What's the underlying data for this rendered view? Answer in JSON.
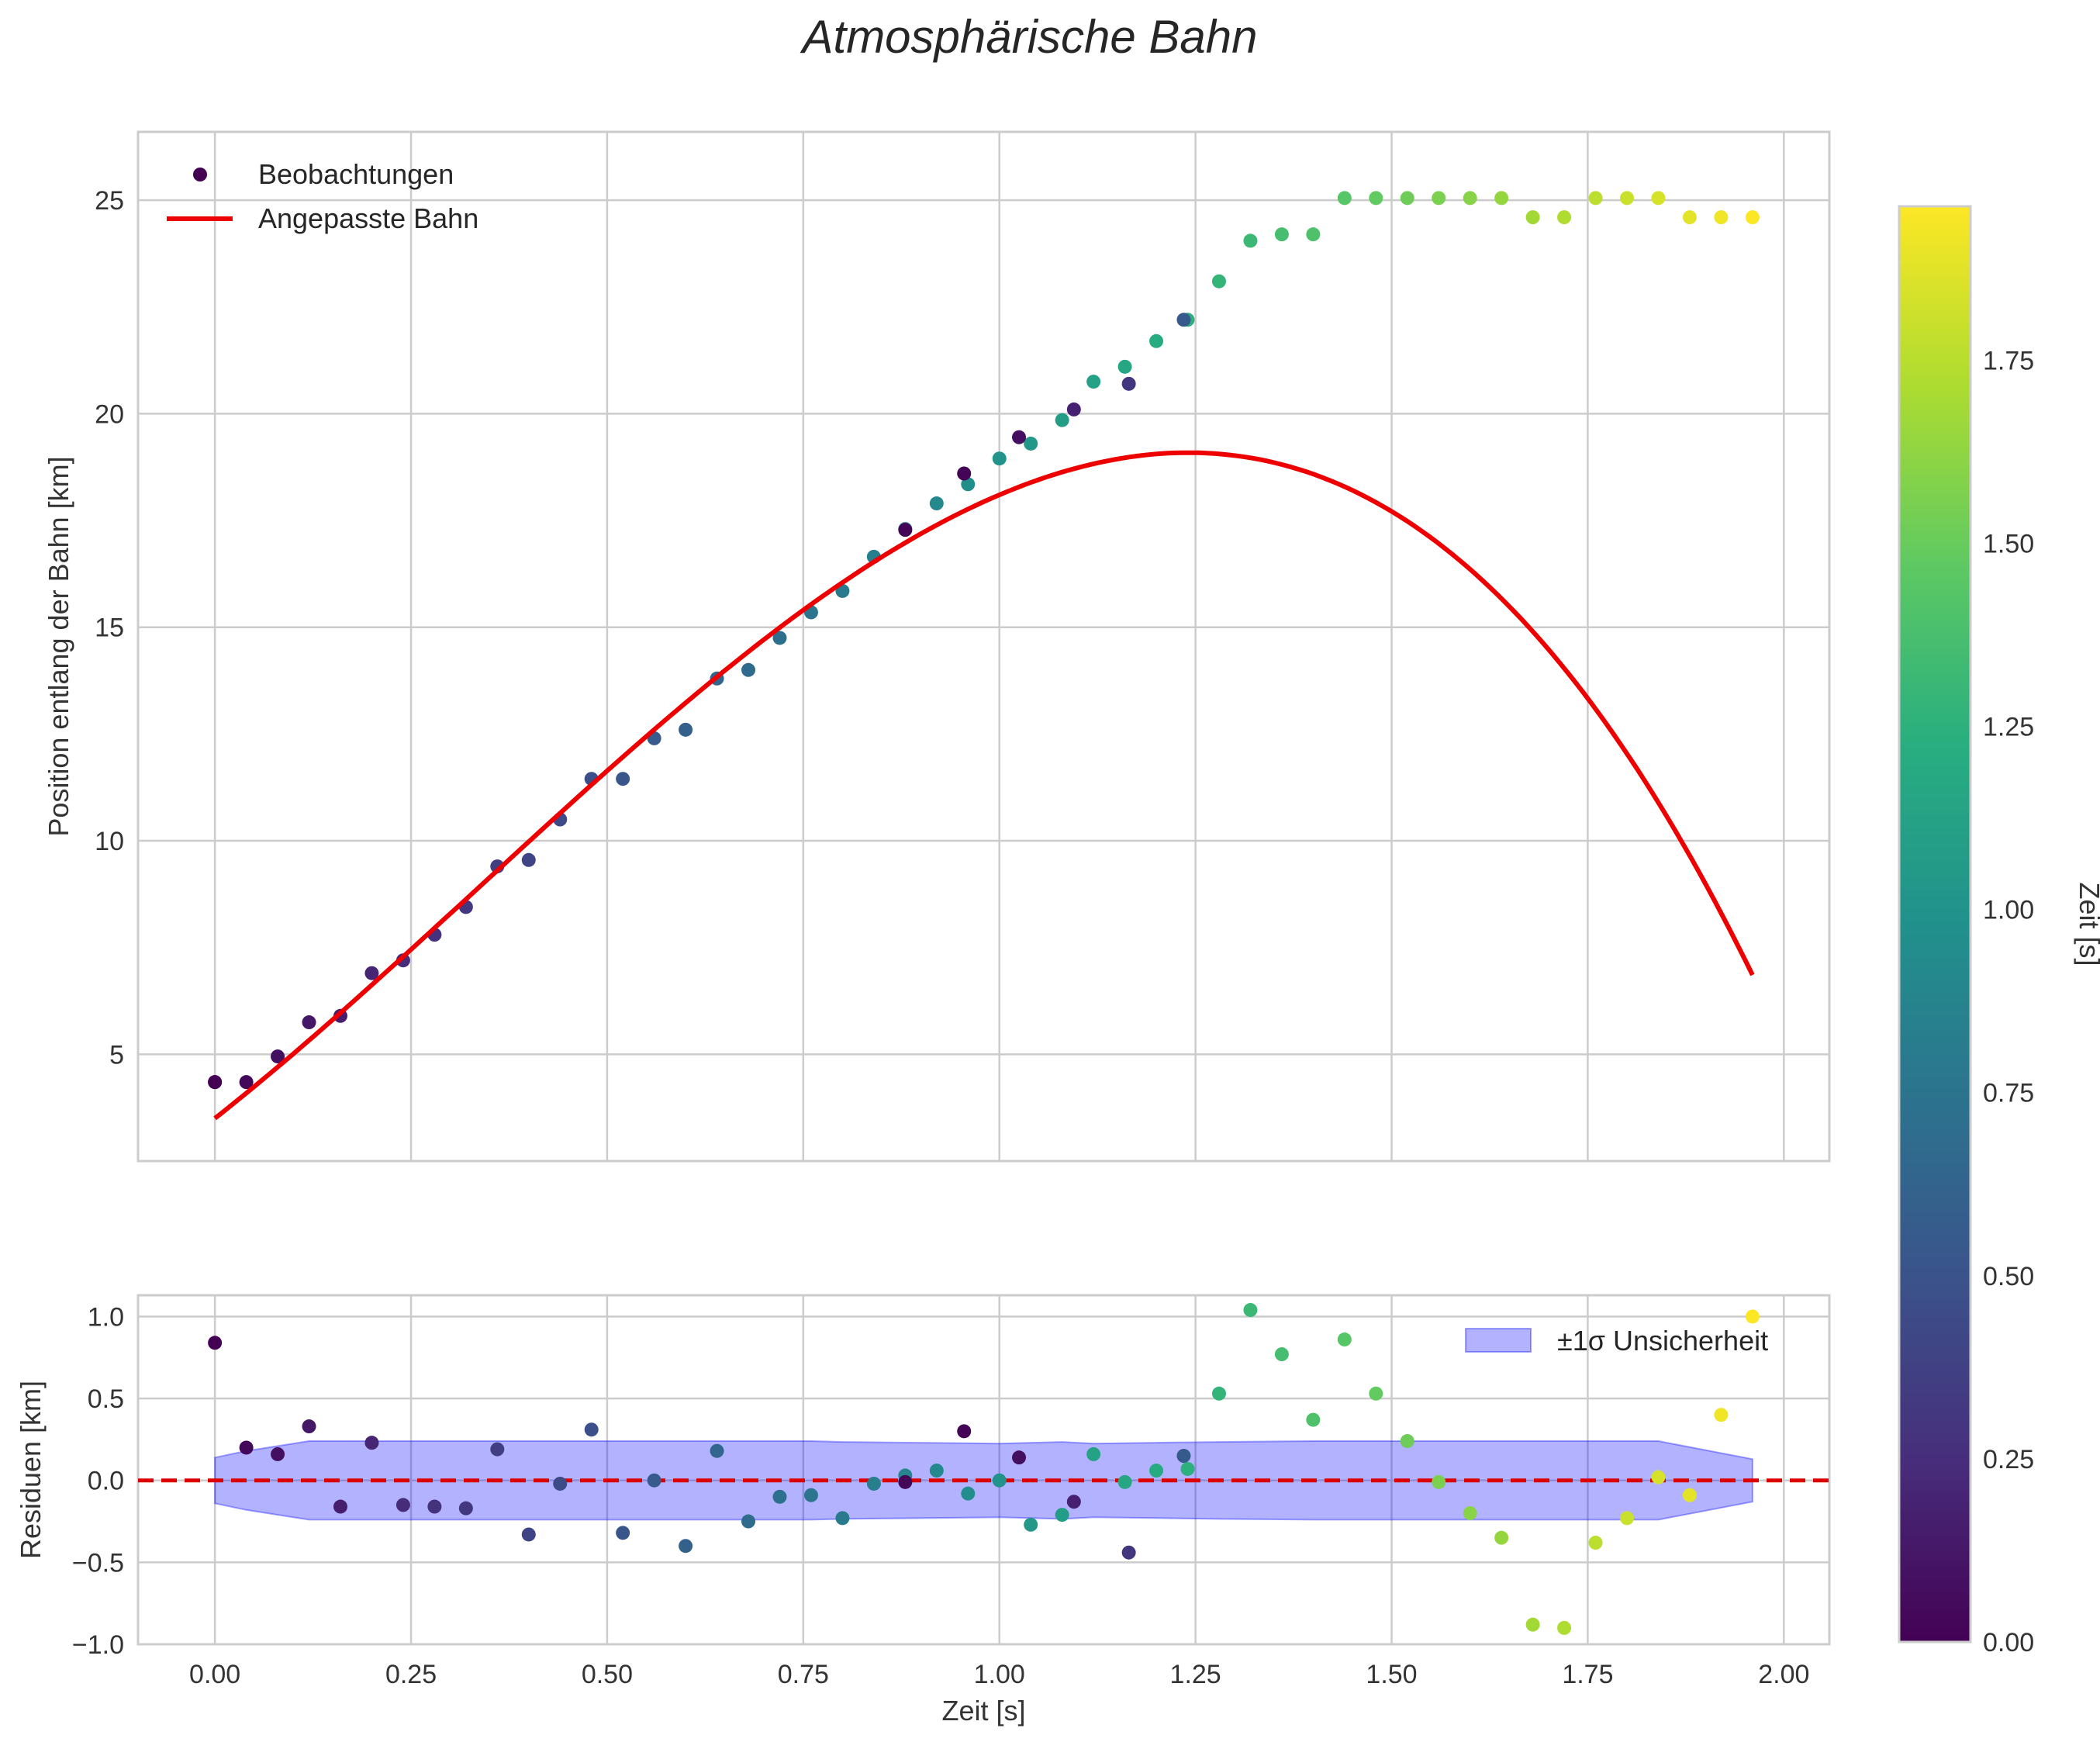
{
  "chart_data": [
    {
      "panel": "top",
      "type": "scatter+line",
      "title": "Atmosphärische Bahn",
      "xlabel": "",
      "ylabel": "Position entlang der Bahn [km]",
      "xlim": [
        -0.098,
        2.058
      ],
      "ylim": [
        2.5,
        26.6
      ],
      "xticks": [
        0.0,
        0.25,
        0.5,
        0.75,
        1.0,
        1.25,
        1.5,
        1.75,
        2.0
      ],
      "yticks": [
        5,
        10,
        15,
        20,
        25
      ],
      "grid": true,
      "legend": {
        "position": "top-left",
        "entries": [
          "Beobachtungen",
          "Angepasste Bahn"
        ]
      },
      "series": [
        {
          "name": "Beobachtungen",
          "kind": "scatter",
          "color_by": "Zeit [s]",
          "points": [
            {
              "x": 0.0,
              "y": 4.35
            },
            {
              "x": 0.04,
              "y": 4.35
            },
            {
              "x": 0.08,
              "y": 4.95
            },
            {
              "x": 0.12,
              "y": 5.75
            },
            {
              "x": 0.16,
              "y": 5.9
            },
            {
              "x": 0.2,
              "y": 6.9
            },
            {
              "x": 0.24,
              "y": 7.2
            },
            {
              "x": 0.28,
              "y": 7.8
            },
            {
              "x": 0.32,
              "y": 8.45
            },
            {
              "x": 0.36,
              "y": 9.4
            },
            {
              "x": 0.4,
              "y": 9.55
            },
            {
              "x": 0.44,
              "y": 10.5
            },
            {
              "x": 0.48,
              "y": 11.45
            },
            {
              "x": 0.52,
              "y": 11.45
            },
            {
              "x": 0.56,
              "y": 12.4
            },
            {
              "x": 0.6,
              "y": 12.6
            },
            {
              "x": 0.64,
              "y": 13.8
            },
            {
              "x": 0.68,
              "y": 14.0
            },
            {
              "x": 0.72,
              "y": 14.75
            },
            {
              "x": 0.76,
              "y": 15.35
            },
            {
              "x": 0.8,
              "y": 15.85
            },
            {
              "x": 0.84,
              "y": 16.65
            },
            {
              "x": 0.88,
              "y": 17.3
            },
            {
              "x": 0.92,
              "y": 17.9
            },
            {
              "x": 0.96,
              "y": 18.35
            },
            {
              "x": 1.0,
              "y": 18.95
            },
            {
              "x": 1.04,
              "y": 19.3
            },
            {
              "x": 1.08,
              "y": 19.85
            },
            {
              "x": 1.12,
              "y": 20.75
            },
            {
              "x": 1.16,
              "y": 21.1
            },
            {
              "x": 1.2,
              "y": 21.7
            },
            {
              "x": 1.24,
              "y": 22.2
            },
            {
              "x": 1.28,
              "y": 23.1
            },
            {
              "x": 1.32,
              "y": 24.05
            },
            {
              "x": 1.36,
              "y": 24.2
            },
            {
              "x": 1.4,
              "y": 24.2
            },
            {
              "x": 1.44,
              "y": 25.05
            },
            {
              "x": 1.48,
              "y": 25.05
            },
            {
              "x": 1.52,
              "y": 25.05
            },
            {
              "x": 1.56,
              "y": 25.05
            },
            {
              "x": 1.6,
              "y": 25.05
            },
            {
              "x": 1.64,
              "y": 25.05
            },
            {
              "x": 1.68,
              "y": 24.6
            },
            {
              "x": 1.72,
              "y": 24.6
            },
            {
              "x": 1.76,
              "y": 25.05
            },
            {
              "x": 1.8,
              "y": 25.05
            },
            {
              "x": 1.84,
              "y": 25.05
            },
            {
              "x": 1.88,
              "y": 24.6
            },
            {
              "x": 1.92,
              "y": 24.6
            },
            {
              "x": 1.96,
              "y": 24.6
            },
            {
              "x": 0.0,
              "y": 4.35,
              "c": 0.0
            },
            {
              "x": 0.955,
              "y": 18.6,
              "c": 0.02
            },
            {
              "x": 0.88,
              "y": 17.28,
              "c": 0.02
            },
            {
              "x": 1.025,
              "y": 19.45,
              "c": 0.08
            },
            {
              "x": 1.095,
              "y": 20.1,
              "c": 0.18
            },
            {
              "x": 1.165,
              "y": 20.7,
              "c": 0.3
            },
            {
              "x": 1.235,
              "y": 22.2,
              "c": 0.55
            }
          ]
        },
        {
          "name": "Angepasste Bahn",
          "kind": "line",
          "color": "#ee0000",
          "model": "y = 3.5 + 14.5 t + 7.0 t^2 - 6.9 t^3",
          "x_range": [
            0.0,
            1.96
          ]
        }
      ]
    },
    {
      "panel": "bottom",
      "type": "scatter+band",
      "xlabel": "Zeit [s]",
      "ylabel": "Residuen [km]",
      "xlim": [
        -0.098,
        2.058
      ],
      "ylim": [
        -1.0,
        1.13
      ],
      "xticks": [
        0.0,
        0.25,
        0.5,
        0.75,
        1.0,
        1.25,
        1.5,
        1.75,
        2.0
      ],
      "xtick_labels": [
        "0.00",
        "0.25",
        "0.50",
        "0.75",
        "1.00",
        "1.25",
        "1.50",
        "1.75",
        "2.00"
      ],
      "yticks": [
        -1.0,
        -0.5,
        0.0,
        0.5,
        1.0
      ],
      "ytick_labels": [
        "−1.0",
        "−0.5",
        "0.0",
        "0.5",
        "1.0"
      ],
      "grid": true,
      "reference_line": {
        "y": 0.0,
        "style": "dashed",
        "color": "#dd0000"
      },
      "band": {
        "name": "±1σ Unsicherheit",
        "color": "#0000ff",
        "x": [
          0.0,
          0.04,
          0.08,
          0.12,
          0.16,
          0.24,
          0.4,
          0.6,
          0.76,
          0.8,
          1.0,
          1.08,
          1.12,
          1.2,
          1.28,
          1.4,
          1.6,
          1.76,
          1.84,
          1.96
        ],
        "sigma": [
          0.14,
          0.18,
          0.21,
          0.24,
          0.24,
          0.24,
          0.24,
          0.24,
          0.24,
          0.235,
          0.225,
          0.235,
          0.225,
          0.23,
          0.235,
          0.24,
          0.24,
          0.24,
          0.24,
          0.13
        ]
      },
      "legend": {
        "position": "top-right",
        "entries": [
          "±1σ Unsicherheit"
        ]
      },
      "series": [
        {
          "name": "Residuen",
          "kind": "scatter",
          "points": [
            {
              "x": 0.0,
              "y": 0.84
            },
            {
              "x": 0.04,
              "y": 0.2
            },
            {
              "x": 0.08,
              "y": 0.16
            },
            {
              "x": 0.12,
              "y": 0.33
            },
            {
              "x": 0.16,
              "y": -0.16
            },
            {
              "x": 0.2,
              "y": 0.23
            },
            {
              "x": 0.24,
              "y": -0.15
            },
            {
              "x": 0.28,
              "y": -0.16
            },
            {
              "x": 0.32,
              "y": -0.17
            },
            {
              "x": 0.36,
              "y": 0.19
            },
            {
              "x": 0.4,
              "y": -0.33
            },
            {
              "x": 0.44,
              "y": -0.02
            },
            {
              "x": 0.48,
              "y": 0.31
            },
            {
              "x": 0.52,
              "y": -0.32
            },
            {
              "x": 0.56,
              "y": 0.0
            },
            {
              "x": 0.6,
              "y": -0.4
            },
            {
              "x": 0.64,
              "y": 0.18
            },
            {
              "x": 0.68,
              "y": -0.25
            },
            {
              "x": 0.72,
              "y": -0.1
            },
            {
              "x": 0.76,
              "y": -0.09
            },
            {
              "x": 0.8,
              "y": -0.23
            },
            {
              "x": 0.84,
              "y": -0.02
            },
            {
              "x": 0.88,
              "y": 0.03
            },
            {
              "x": 0.92,
              "y": 0.06
            },
            {
              "x": 0.96,
              "y": -0.08
            },
            {
              "x": 1.0,
              "y": 0.0
            },
            {
              "x": 1.04,
              "y": -0.27
            },
            {
              "x": 1.08,
              "y": -0.21
            },
            {
              "x": 1.12,
              "y": 0.16
            },
            {
              "x": 1.16,
              "y": -0.01
            },
            {
              "x": 1.2,
              "y": 0.06
            },
            {
              "x": 1.24,
              "y": 0.07
            },
            {
              "x": 1.28,
              "y": 0.53
            },
            {
              "x": 1.32,
              "y": 1.04
            },
            {
              "x": 1.36,
              "y": 0.77
            },
            {
              "x": 1.4,
              "y": 0.37
            },
            {
              "x": 1.44,
              "y": 0.86
            },
            {
              "x": 1.48,
              "y": 0.53
            },
            {
              "x": 1.52,
              "y": 0.24
            },
            {
              "x": 1.56,
              "y": -0.01
            },
            {
              "x": 1.6,
              "y": -0.2
            },
            {
              "x": 1.64,
              "y": -0.35
            },
            {
              "x": 1.68,
              "y": -0.88
            },
            {
              "x": 1.72,
              "y": -0.9
            },
            {
              "x": 1.76,
              "y": -0.38
            },
            {
              "x": 1.8,
              "y": -0.23
            },
            {
              "x": 1.84,
              "y": 0.02
            },
            {
              "x": 1.88,
              "y": -0.09
            },
            {
              "x": 1.92,
              "y": 0.4
            },
            {
              "x": 1.96,
              "y": 1.0
            },
            {
              "x": 0.955,
              "y": 0.3,
              "c": 0.02
            },
            {
              "x": 0.88,
              "y": -0.01,
              "c": 0.02
            },
            {
              "x": 1.025,
              "y": 0.14,
              "c": 0.08
            },
            {
              "x": 1.095,
              "y": -0.13,
              "c": 0.18
            },
            {
              "x": 1.165,
              "y": -0.44,
              "c": 0.3
            },
            {
              "x": 1.235,
              "y": 0.15,
              "c": 0.55
            }
          ]
        }
      ]
    },
    {
      "panel": "colorbar",
      "type": "colorbar",
      "label": "Zeit [s]",
      "colormap": "viridis",
      "range": [
        0.0,
        1.96
      ],
      "ticks": [
        0.0,
        0.25,
        0.5,
        0.75,
        1.0,
        1.25,
        1.5,
        1.75
      ],
      "tick_labels": [
        "0.00",
        "0.25",
        "0.50",
        "0.75",
        "1.00",
        "1.25",
        "1.50",
        "1.75"
      ]
    }
  ]
}
